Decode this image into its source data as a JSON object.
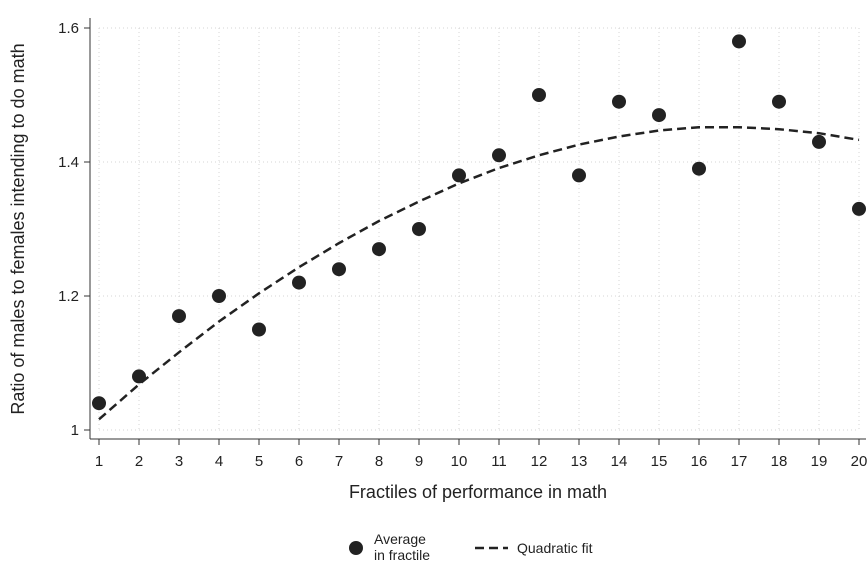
{
  "chart_data": {
    "type": "scatter",
    "title": "",
    "xlabel": "Fractiles of performance in math",
    "ylabel": "Ratio of males to females intending to do math",
    "xlim": [
      1,
      20
    ],
    "ylim": [
      1,
      1.6
    ],
    "x_ticks": [
      "1",
      "2",
      "3",
      "4",
      "5",
      "6",
      "7",
      "8",
      "9",
      "10",
      "11",
      "12",
      "13",
      "14",
      "15",
      "16",
      "17",
      "18",
      "19",
      "20"
    ],
    "y_ticks": [
      "1",
      "1.2",
      "1.4",
      "1.6"
    ],
    "y_tick_values": [
      1,
      1.2,
      1.4,
      1.6
    ],
    "grid": true,
    "legend_position": "bottom",
    "series": [
      {
        "name": "Average in fractile",
        "legend_lines": [
          "Average",
          "in fractile"
        ],
        "kind": "scatter",
        "color": "#222222",
        "x": [
          1,
          2,
          3,
          4,
          5,
          6,
          7,
          8,
          9,
          10,
          11,
          12,
          13,
          14,
          15,
          16,
          17,
          18,
          19,
          20
        ],
        "y": [
          1.04,
          1.08,
          1.17,
          1.2,
          1.15,
          1.22,
          1.24,
          1.27,
          1.3,
          1.38,
          1.41,
          1.5,
          1.38,
          1.49,
          1.47,
          1.39,
          1.58,
          1.49,
          1.43,
          1.33
        ]
      },
      {
        "name": "Quadratic fit",
        "kind": "dashed-line",
        "color": "#222222",
        "x": [
          1,
          2,
          3,
          4,
          5,
          6,
          7,
          8,
          9,
          10,
          11,
          12,
          13,
          14,
          15,
          16,
          17,
          18,
          19,
          20
        ],
        "y": [
          1.016,
          1.068,
          1.116,
          1.162,
          1.204,
          1.243,
          1.279,
          1.312,
          1.341,
          1.368,
          1.391,
          1.41,
          1.426,
          1.438,
          1.447,
          1.452,
          1.452,
          1.449,
          1.443,
          1.433
        ]
      }
    ]
  }
}
